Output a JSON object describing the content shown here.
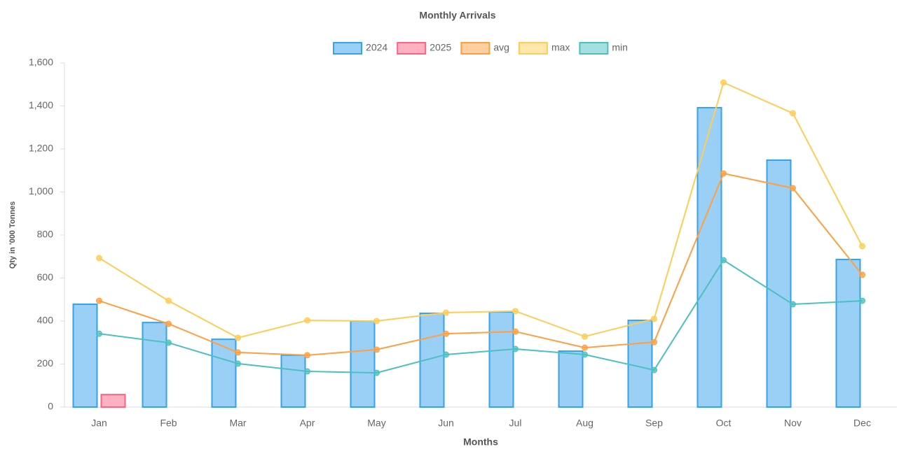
{
  "chart_data": {
    "type": "bar",
    "title": "Monthly Arrivals",
    "xlabel": "Months",
    "ylabel": "Qty in '000 Tonnes",
    "categories": [
      "Jan",
      "Feb",
      "Mar",
      "Apr",
      "May",
      "Jun",
      "Jul",
      "Aug",
      "Sep",
      "Oct",
      "Nov",
      "Dec"
    ],
    "series": [
      {
        "name": "2024",
        "type": "bar",
        "color": "#36a2eb",
        "values": [
          478,
          393,
          315,
          241,
          400,
          436,
          442,
          260,
          403,
          1392,
          1148,
          686
        ]
      },
      {
        "name": "2025",
        "type": "bar",
        "color": "#ff6384",
        "values": [
          58,
          null,
          null,
          null,
          null,
          null,
          null,
          null,
          null,
          null,
          null,
          null
        ]
      },
      {
        "name": "avg",
        "type": "line",
        "color": "#ff9f40",
        "values": [
          494,
          387,
          254,
          241,
          267,
          341,
          351,
          276,
          302,
          1086,
          1018,
          615
        ]
      },
      {
        "name": "max",
        "type": "line",
        "color": "#ffcd56",
        "values": [
          693,
          494,
          322,
          403,
          400,
          439,
          446,
          328,
          410,
          1509,
          1366,
          748
        ]
      },
      {
        "name": "min",
        "type": "line",
        "color": "#4bc0c0",
        "values": [
          341,
          299,
          202,
          166,
          159,
          244,
          270,
          244,
          172,
          683,
          478,
          494
        ]
      }
    ],
    "ylim": [
      0,
      1600
    ],
    "yticks": [
      0,
      200,
      400,
      600,
      800,
      {
        "value": 1000,
        "label": "1,000"
      },
      {
        "value": 1200,
        "label": "1,200"
      },
      {
        "value": 1400,
        "label": "1,400"
      },
      {
        "value": 1600,
        "label": "1,600"
      }
    ],
    "legend": "top",
    "grid": false
  }
}
